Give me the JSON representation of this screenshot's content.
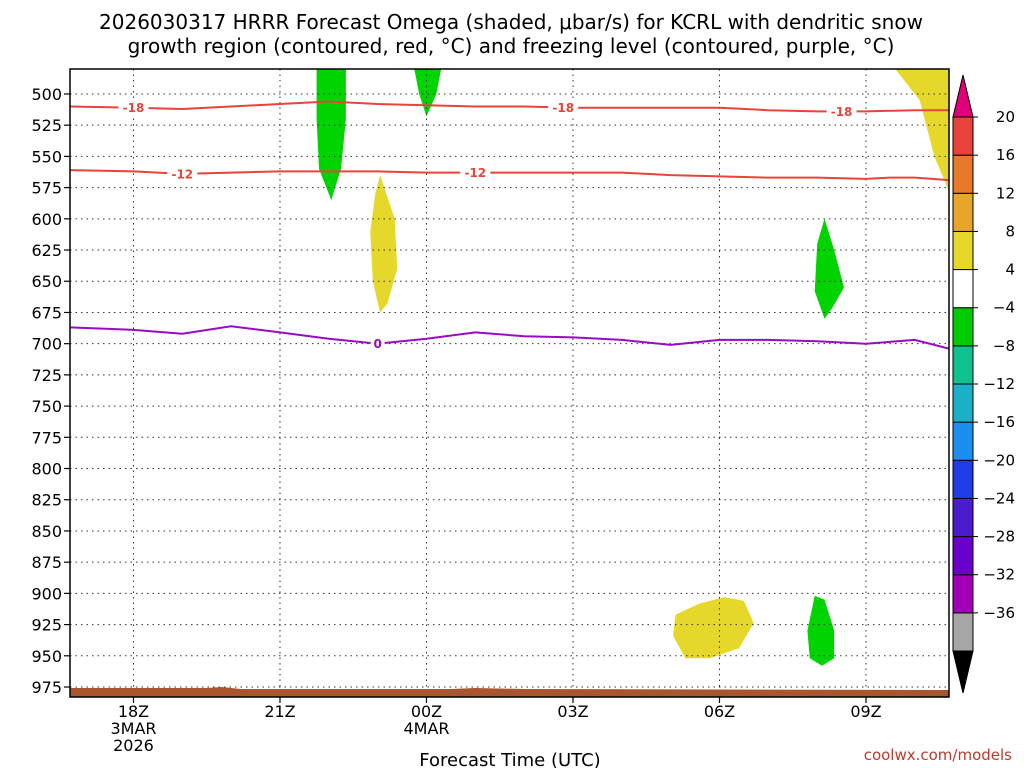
{
  "chart_data": {
    "type": "time-height-cross-section",
    "title_line1": "2026030317 HRRR Forecast Omega (shaded, μbar/s) for KCRL with dendritic snow",
    "title_line2": "growth region (contoured, red, °C) and freezing level (contoured, purple, °C)",
    "xlabel": "Forecast Time (UTC)",
    "credit": "coolwx.com/models",
    "x_range_hours": [
      -1.3,
      16.7
    ],
    "x_ticks": [
      {
        "hour": 0,
        "lines": [
          "18Z",
          "3MAR",
          "2026"
        ]
      },
      {
        "hour": 3,
        "lines": [
          "21Z"
        ]
      },
      {
        "hour": 6,
        "lines": [
          "00Z",
          "4MAR"
        ]
      },
      {
        "hour": 9,
        "lines": [
          "03Z"
        ]
      },
      {
        "hour": 12,
        "lines": [
          "06Z"
        ]
      },
      {
        "hour": 15,
        "lines": [
          "09Z"
        ]
      }
    ],
    "y_range_hpa": [
      480,
      983
    ],
    "y_ticks": [
      "500",
      "525",
      "550",
      "575",
      "600",
      "625",
      "650",
      "675",
      "700",
      "725",
      "750",
      "775",
      "800",
      "825",
      "850",
      "875",
      "900",
      "925",
      "950",
      "975"
    ],
    "contours": [
      {
        "name": "dgz-minus18",
        "label": "-18",
        "color": "#e8443a",
        "points": [
          [
            -1.3,
            510
          ],
          [
            0,
            511
          ],
          [
            1,
            512
          ],
          [
            2,
            510
          ],
          [
            3,
            508
          ],
          [
            4,
            506
          ],
          [
            5,
            508
          ],
          [
            6,
            509
          ],
          [
            7,
            510
          ],
          [
            8,
            510
          ],
          [
            9,
            511
          ],
          [
            10,
            511
          ],
          [
            11,
            511
          ],
          [
            12,
            511
          ],
          [
            13,
            513
          ],
          [
            14,
            514
          ],
          [
            15,
            514
          ],
          [
            16,
            513
          ],
          [
            16.7,
            513
          ]
        ],
        "label_hours": [
          0,
          8.8,
          14.5
        ]
      },
      {
        "name": "dgz-minus12",
        "label": "-12",
        "color": "#e8443a",
        "points": [
          [
            -1.3,
            561
          ],
          [
            0,
            562
          ],
          [
            1,
            564
          ],
          [
            2,
            563
          ],
          [
            3,
            562
          ],
          [
            4,
            562
          ],
          [
            5,
            562
          ],
          [
            6,
            563
          ],
          [
            7,
            563
          ],
          [
            8,
            563
          ],
          [
            9,
            563
          ],
          [
            10,
            563
          ],
          [
            11,
            565
          ],
          [
            12,
            566
          ],
          [
            13,
            567
          ],
          [
            14,
            567
          ],
          [
            15,
            568
          ],
          [
            15.5,
            567
          ],
          [
            16,
            567
          ],
          [
            16.7,
            569
          ]
        ],
        "label_hours": [
          1,
          7
        ]
      },
      {
        "name": "freezing-level",
        "label": "0",
        "color": "#9a0bc4",
        "points": [
          [
            -1.3,
            687
          ],
          [
            0,
            689
          ],
          [
            1,
            692
          ],
          [
            2,
            686
          ],
          [
            3,
            691
          ],
          [
            4,
            696
          ],
          [
            5,
            700
          ],
          [
            6,
            696
          ],
          [
            7,
            691
          ],
          [
            8,
            694
          ],
          [
            9,
            695
          ],
          [
            10,
            697
          ],
          [
            11,
            701
          ],
          [
            12,
            697
          ],
          [
            13,
            697
          ],
          [
            14,
            698
          ],
          [
            15,
            700
          ],
          [
            16,
            697
          ],
          [
            16.7,
            704
          ]
        ],
        "label_hours": [
          5
        ]
      }
    ],
    "shaded_regions": [
      {
        "name": "omega-green-upper-1",
        "color": "#00d400",
        "points": [
          [
            3.75,
            470
          ],
          [
            4.35,
            470
          ],
          [
            4.35,
            520
          ],
          [
            4.25,
            560
          ],
          [
            4.05,
            585
          ],
          [
            3.8,
            560
          ],
          [
            3.75,
            520
          ]
        ]
      },
      {
        "name": "omega-green-upper-2",
        "color": "#00d400",
        "points": [
          [
            5.7,
            470
          ],
          [
            6.35,
            470
          ],
          [
            6.2,
            500
          ],
          [
            6.0,
            518
          ],
          [
            5.85,
            500
          ]
        ]
      },
      {
        "name": "omega-yellow-mid",
        "color": "#e6d82a",
        "points": [
          [
            5.05,
            565
          ],
          [
            5.35,
            600
          ],
          [
            5.4,
            640
          ],
          [
            5.2,
            668
          ],
          [
            5.05,
            675
          ],
          [
            4.9,
            650
          ],
          [
            4.85,
            610
          ],
          [
            4.95,
            580
          ]
        ]
      },
      {
        "name": "omega-green-mid",
        "color": "#00d400",
        "points": [
          [
            14.15,
            600
          ],
          [
            14.35,
            625
          ],
          [
            14.55,
            655
          ],
          [
            14.3,
            672
          ],
          [
            14.15,
            680
          ],
          [
            13.95,
            658
          ],
          [
            14.0,
            620
          ]
        ]
      },
      {
        "name": "omega-yellow-right",
        "color": "#e6d82a",
        "points": [
          [
            15.5,
            470
          ],
          [
            16.7,
            470
          ],
          [
            16.7,
            578
          ],
          [
            16.4,
            550
          ],
          [
            16.1,
            505
          ],
          [
            15.6,
            480
          ]
        ]
      },
      {
        "name": "omega-yellow-low",
        "color": "#e6d82a",
        "points": [
          [
            11.1,
            917
          ],
          [
            11.6,
            908
          ],
          [
            12.1,
            903
          ],
          [
            12.5,
            906
          ],
          [
            12.7,
            924
          ],
          [
            12.4,
            944
          ],
          [
            11.8,
            952
          ],
          [
            11.3,
            952
          ],
          [
            11.05,
            934
          ]
        ]
      },
      {
        "name": "omega-green-low",
        "color": "#00d400",
        "points": [
          [
            13.95,
            902
          ],
          [
            14.15,
            905
          ],
          [
            14.35,
            930
          ],
          [
            14.35,
            952
          ],
          [
            14.1,
            958
          ],
          [
            13.85,
            952
          ],
          [
            13.8,
            930
          ]
        ]
      }
    ],
    "terrain": {
      "name": "ground",
      "color": "#a9552e",
      "top_hpa": 975
    },
    "colorbar": {
      "levels": [
        -36,
        -32,
        -28,
        -24,
        -20,
        -16,
        -12,
        -8,
        -4,
        4,
        8,
        12,
        16,
        20
      ],
      "tick_labels": [
        "20",
        "16",
        "12",
        "8",
        "4",
        "−4",
        "−8",
        "−12",
        "−16",
        "−20",
        "−24",
        "−28",
        "−32",
        "−36"
      ],
      "segment_colors_bottom_to_top": [
        "#a6a6a6",
        "#a100b8",
        "#6a00cc",
        "#4b1ccf",
        "#1f3ce6",
        "#1a8ff0",
        "#1ab0c8",
        "#10c28f",
        "#00cc00",
        "#ffffff",
        "#e6d82a",
        "#e8a52a",
        "#e8792a",
        "#e8443a"
      ],
      "below_color": "#000000",
      "above_color": "#e0007a"
    }
  }
}
